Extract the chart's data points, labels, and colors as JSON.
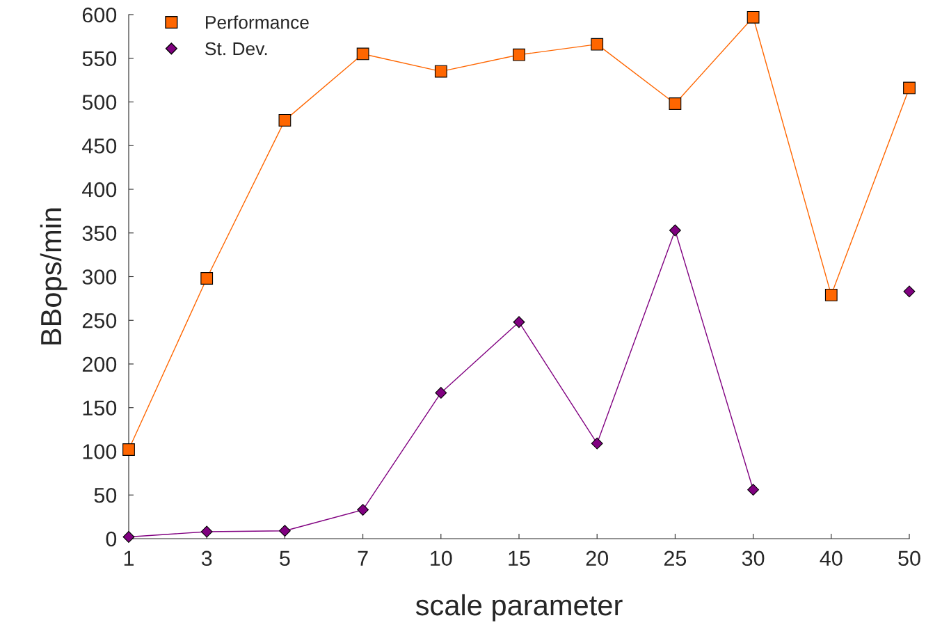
{
  "chart_data": {
    "type": "line",
    "xlabel": "scale parameter",
    "ylabel": "BBops/min",
    "categories": [
      "1",
      "3",
      "5",
      "7",
      "10",
      "15",
      "20",
      "25",
      "30",
      "40",
      "50"
    ],
    "series": [
      {
        "name": "Performance",
        "color": "#ff6600",
        "marker": "square",
        "values": [
          102,
          298,
          479,
          555,
          535,
          554,
          566,
          498,
          597,
          279,
          516
        ]
      },
      {
        "name": "St. Dev.",
        "color": "#800080",
        "marker": "diamond",
        "values": [
          2,
          8,
          9,
          33,
          167,
          248,
          109,
          353,
          56,
          null,
          283
        ]
      }
    ],
    "ylim": [
      0,
      600
    ],
    "yticks": [
      0,
      50,
      100,
      150,
      200,
      250,
      300,
      350,
      400,
      450,
      500,
      550,
      600
    ],
    "grid": false,
    "legend": "top left",
    "line_style": "solid"
  }
}
